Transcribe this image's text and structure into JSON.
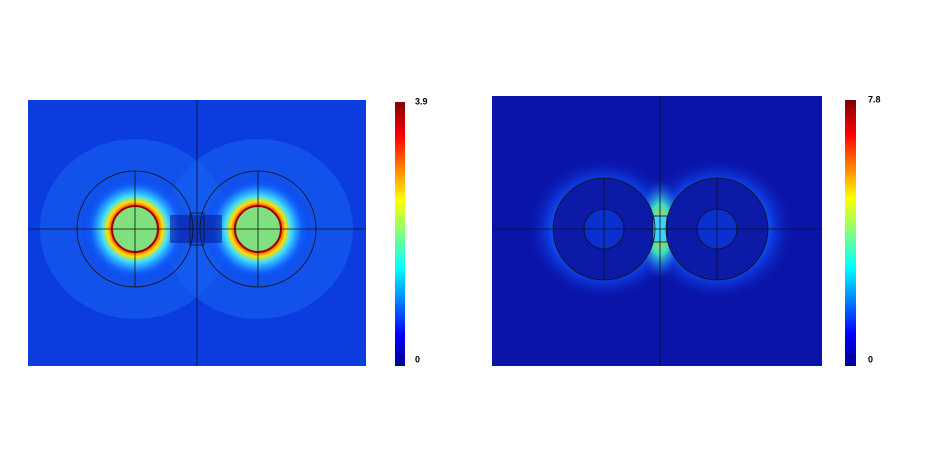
{
  "panels": [
    {
      "colorbar_ticks": [
        3.9,
        0
      ]
    },
    {
      "colorbar_ticks": [
        7.8,
        0
      ]
    }
  ]
}
